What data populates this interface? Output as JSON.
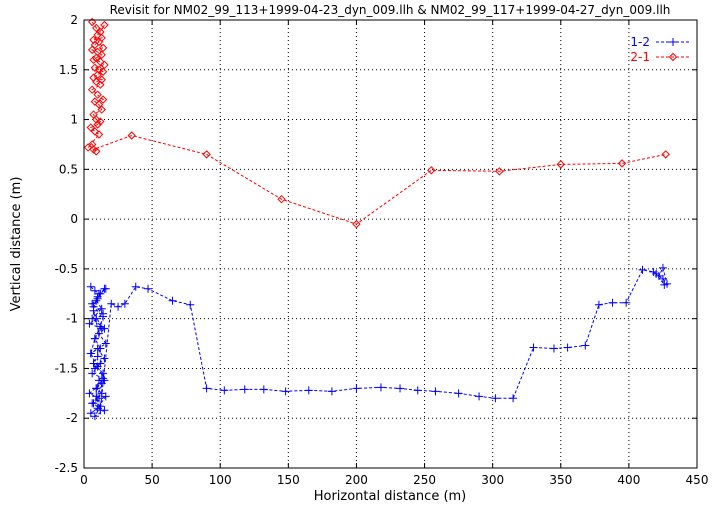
{
  "chart_data": {
    "type": "line",
    "title": "Revisit for NM02_99_113+1999-04-23_dyn_009.llh & NM02_99_117+1999-04-27_dyn_009.llh",
    "xlabel": "Horizontal distance (m)",
    "ylabel": "Vertical distance (m)",
    "xlim": [
      0,
      450
    ],
    "ylim": [
      -2.5,
      2
    ],
    "xticks": [
      0,
      50,
      100,
      150,
      200,
      250,
      300,
      350,
      400,
      450
    ],
    "yticks": [
      -2.5,
      -2,
      -1.5,
      -1,
      -0.5,
      0,
      0.5,
      1,
      1.5,
      2
    ],
    "xtick_labels": [
      "0",
      "50",
      "100",
      "150",
      "200",
      "250",
      "300",
      "350",
      "400",
      "450"
    ],
    "ytick_labels": [
      "-2.5",
      "-2",
      "-1.5",
      "-1",
      "-0.5",
      "0",
      "0.5",
      "1",
      "1.5",
      "2"
    ],
    "grid": true,
    "legend_position": "top-right",
    "series": [
      {
        "name": "1-2",
        "color": "#0000ff",
        "marker": "plus",
        "x": [
          5,
          8,
          12,
          15,
          10,
          6,
          14,
          9,
          4,
          13,
          7,
          11,
          16,
          5,
          10,
          15,
          8,
          12,
          6,
          14,
          9,
          13,
          4,
          11,
          7,
          16,
          10,
          5,
          12,
          8,
          15,
          6,
          13,
          9,
          11,
          14,
          7,
          10,
          12,
          8,
          15,
          6,
          13,
          9,
          11,
          16,
          10,
          7,
          14,
          12,
          8,
          5,
          10,
          15,
          9,
          12,
          20,
          25,
          30,
          38,
          47,
          65,
          78,
          90,
          103,
          118,
          132,
          148,
          165,
          182,
          200,
          218,
          232,
          245,
          258,
          275,
          290,
          302,
          315,
          330,
          345,
          355,
          368,
          378,
          388,
          398,
          410,
          418,
          422,
          425,
          428,
          425,
          420,
          426
        ],
        "y": [
          -0.68,
          -0.72,
          -0.75,
          -0.7,
          -0.8,
          -0.85,
          -0.95,
          -1.0,
          -1.05,
          -1.1,
          -0.92,
          -1.15,
          -1.25,
          -1.35,
          -1.3,
          -1.4,
          -1.5,
          -1.45,
          -1.55,
          -1.6,
          -1.7,
          -1.65,
          -1.75,
          -1.8,
          -1.85,
          -1.78,
          -1.9,
          -1.95,
          -1.88,
          -1.98,
          -1.92,
          -1.85,
          -1.75,
          -1.7,
          -1.62,
          -1.55,
          -1.45,
          -1.38,
          -1.3,
          -1.2,
          -1.1,
          -1.0,
          -0.9,
          -0.82,
          -0.75,
          -0.7,
          -0.78,
          -0.88,
          -0.98,
          -1.08,
          -1.2,
          -1.35,
          -1.48,
          -1.62,
          -1.78,
          -1.92,
          -0.85,
          -0.88,
          -0.85,
          -0.68,
          -0.7,
          -0.82,
          -0.86,
          -1.7,
          -1.72,
          -1.71,
          -1.71,
          -1.73,
          -1.72,
          -1.73,
          -1.7,
          -1.69,
          -1.7,
          -1.72,
          -1.73,
          -1.75,
          -1.78,
          -1.8,
          -1.8,
          -1.29,
          -1.3,
          -1.29,
          -1.27,
          -0.86,
          -0.84,
          -0.84,
          -0.51,
          -0.53,
          -0.57,
          -0.49,
          -0.65,
          -0.6,
          -0.55,
          -0.66
        ]
      },
      {
        "name": "2-1",
        "color": "#ff0000",
        "marker": "diamond",
        "x": [
          6,
          9,
          12,
          15,
          10,
          7,
          13,
          8,
          11,
          14,
          6,
          10,
          13,
          9,
          7,
          12,
          15,
          8,
          11,
          14,
          10,
          7,
          13,
          9,
          12,
          6,
          10,
          14,
          8,
          11,
          13,
          7,
          9,
          12,
          10,
          5,
          8,
          11,
          3,
          6,
          9,
          7,
          35,
          90,
          145,
          200,
          255,
          305,
          350,
          395,
          427
        ],
        "y": [
          1.98,
          1.92,
          1.88,
          1.95,
          1.85,
          1.8,
          1.82,
          1.75,
          1.78,
          1.72,
          1.7,
          1.68,
          1.65,
          1.62,
          1.6,
          1.58,
          1.55,
          1.52,
          1.5,
          1.48,
          1.45,
          1.42,
          1.4,
          1.38,
          1.35,
          1.3,
          1.25,
          1.2,
          1.18,
          1.15,
          1.1,
          1.05,
          1.0,
          0.98,
          0.95,
          0.92,
          0.88,
          0.85,
          0.72,
          0.75,
          0.68,
          0.7,
          0.84,
          0.65,
          0.2,
          -0.05,
          0.49,
          0.48,
          0.55,
          0.56,
          0.65
        ]
      }
    ]
  }
}
